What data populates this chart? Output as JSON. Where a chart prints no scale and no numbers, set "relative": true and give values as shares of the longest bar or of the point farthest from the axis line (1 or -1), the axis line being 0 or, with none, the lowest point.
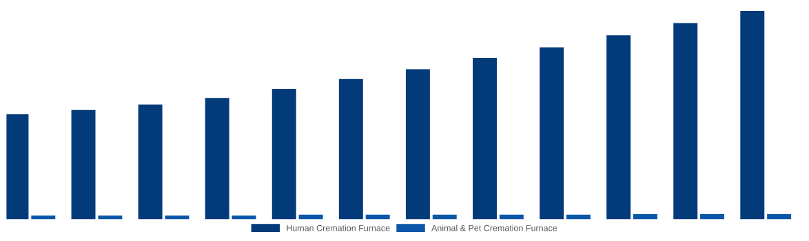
{
  "chart_data": {
    "type": "bar",
    "relative": true,
    "categories": [
      null,
      null,
      null,
      null,
      null,
      null,
      null,
      null,
      null,
      null,
      null,
      null
    ],
    "series": [
      {
        "name": "Human Cremation Furnace",
        "color": "#033b7a",
        "values": [
          0.504,
          0.525,
          0.551,
          0.583,
          0.627,
          0.674,
          0.721,
          0.775,
          0.826,
          0.884,
          0.942,
          1
        ]
      },
      {
        "name": "Animal & Pet Cremation Furnace",
        "color": "#0a56a8",
        "values": [
          0.018,
          0.018,
          0.018,
          0.018,
          0.022,
          0.022,
          0.022,
          0.022,
          0.022,
          0.025,
          0.025,
          0.025
        ]
      }
    ],
    "legend": "bottom",
    "grid": false
  }
}
